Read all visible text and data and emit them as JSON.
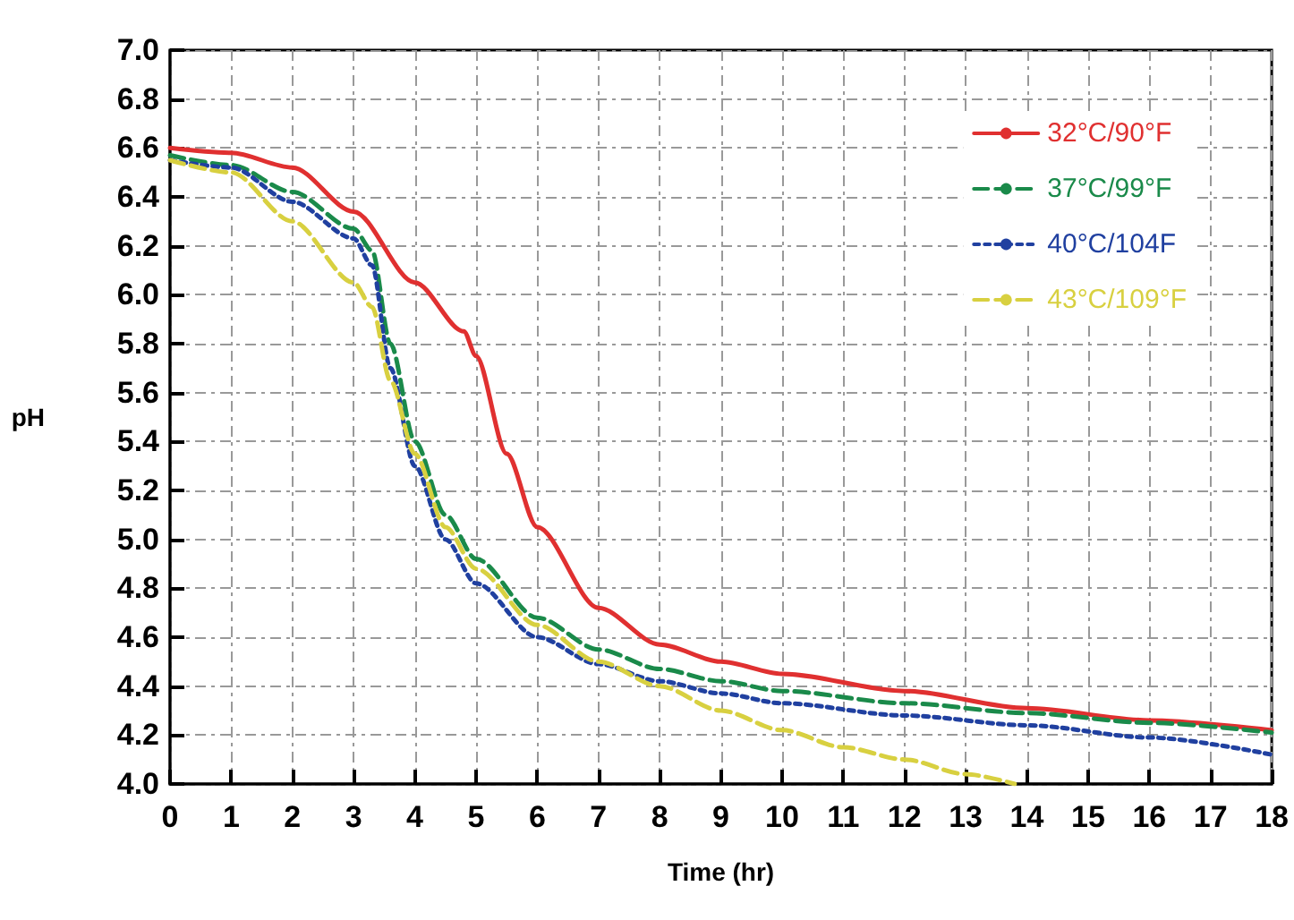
{
  "chart_data": {
    "type": "line",
    "xlabel": "Time (hr)",
    "ylabel": "pH",
    "xlim": [
      0,
      18
    ],
    "xticks": [
      0,
      1,
      2,
      3,
      4,
      5,
      6,
      7,
      8,
      9,
      10,
      11,
      12,
      13,
      14,
      15,
      16,
      17,
      18
    ],
    "ylim": [
      4.0,
      7.0
    ],
    "yticks": [
      {
        "value": 4.0,
        "label": "4.0"
      },
      {
        "value": 4.2,
        "label": "4.2"
      },
      {
        "value": 4.4,
        "label": "4.4"
      },
      {
        "value": 4.6,
        "label": "4.6"
      },
      {
        "value": 4.8,
        "label": "4.8"
      },
      {
        "value": 5.0,
        "label": "5.0"
      },
      {
        "value": 5.2,
        "label": "5.2"
      },
      {
        "value": 5.4,
        "label": "5.4"
      },
      {
        "value": 5.6,
        "label": "5.6"
      },
      {
        "value": 5.8,
        "label": "5.8"
      },
      {
        "value": 6.0,
        "label": "6.0"
      },
      {
        "value": 6.2,
        "label": "6.2"
      },
      {
        "value": 6.4,
        "label": "6.4"
      },
      {
        "value": 6.6,
        "label": "6.6"
      },
      {
        "value": 6.8,
        "label": "6.8"
      },
      {
        "value": 7.0,
        "label": "7.0"
      }
    ],
    "grid": true,
    "legend": "top right",
    "marker": "none",
    "series": [
      {
        "name": "32°C/90°F",
        "color": "#e03030",
        "line_style": "solid",
        "x": [
          0,
          1,
          2,
          3,
          4,
          4.8,
          5,
          5.5,
          6,
          7,
          8,
          9,
          10,
          12,
          14,
          16,
          18
        ],
        "values": [
          6.6,
          6.58,
          6.52,
          6.34,
          6.05,
          5.85,
          5.75,
          5.35,
          5.05,
          4.72,
          4.57,
          4.5,
          4.45,
          4.38,
          4.31,
          4.26,
          4.22
        ]
      },
      {
        "name": "37°C/99°F",
        "color": "#1a8a4a",
        "line_style": "dashed",
        "x": [
          0,
          1,
          2,
          3,
          3.3,
          3.6,
          4,
          4.5,
          5,
          6,
          7,
          8,
          9,
          10,
          12,
          14,
          16,
          18
        ],
        "values": [
          6.57,
          6.53,
          6.42,
          6.27,
          6.18,
          5.8,
          5.4,
          5.1,
          4.92,
          4.68,
          4.55,
          4.47,
          4.42,
          4.38,
          4.33,
          4.29,
          4.25,
          4.21
        ]
      },
      {
        "name": "40°C/104F",
        "color": "#2040a0",
        "line_style": "dotted",
        "x": [
          0,
          1,
          2,
          3,
          3.3,
          3.6,
          4,
          4.5,
          5,
          6,
          7,
          8,
          9,
          10,
          12,
          14,
          16,
          18
        ],
        "values": [
          6.55,
          6.52,
          6.38,
          6.23,
          6.12,
          5.7,
          5.3,
          5.0,
          4.82,
          4.6,
          4.49,
          4.42,
          4.37,
          4.33,
          4.28,
          4.24,
          4.19,
          4.12
        ]
      },
      {
        "name": "43°C/109°F",
        "color": "#d8d040",
        "line_style": "dashed",
        "x": [
          0,
          1,
          2,
          3,
          3.3,
          3.6,
          4,
          4.5,
          5,
          6,
          7,
          8,
          9,
          10,
          11,
          12,
          13,
          13.8
        ],
        "values": [
          6.55,
          6.5,
          6.3,
          6.05,
          5.95,
          5.65,
          5.35,
          5.05,
          4.88,
          4.65,
          4.5,
          4.4,
          4.3,
          4.22,
          4.15,
          4.1,
          4.04,
          4.0
        ]
      }
    ]
  }
}
